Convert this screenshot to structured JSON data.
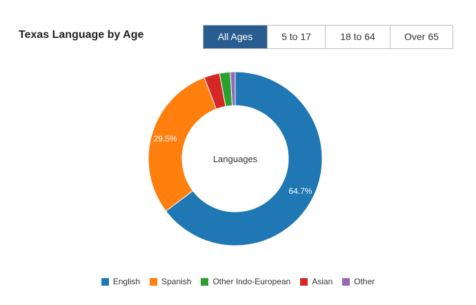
{
  "title": "Texas Language by Age",
  "tabs": [
    {
      "label": "All Ages",
      "active": true
    },
    {
      "label": "5 to 17",
      "active": false
    },
    {
      "label": "18 to 64",
      "active": false
    },
    {
      "label": "Over 65",
      "active": false
    }
  ],
  "chart_data": {
    "type": "pie",
    "variant": "donut",
    "center_label": "Languages",
    "slices": [
      {
        "name": "English",
        "value": 64.7,
        "label": "64.7%",
        "color": "#1f77b4"
      },
      {
        "name": "Spanish",
        "value": 29.5,
        "label": "29.5%",
        "color": "#ff7f0e"
      },
      {
        "name": "Other Indo-European",
        "value": 2.0,
        "label": "",
        "color": "#2ca02c"
      },
      {
        "name": "Asian",
        "value": 2.9,
        "label": "",
        "color": "#d62728"
      },
      {
        "name": "Other",
        "value": 0.9,
        "label": "",
        "color": "#9467bd"
      }
    ],
    "slice_order_clockwise": [
      "English",
      "Spanish",
      "Asian",
      "Other Indo-European",
      "Other"
    ],
    "legend_position": "bottom"
  }
}
